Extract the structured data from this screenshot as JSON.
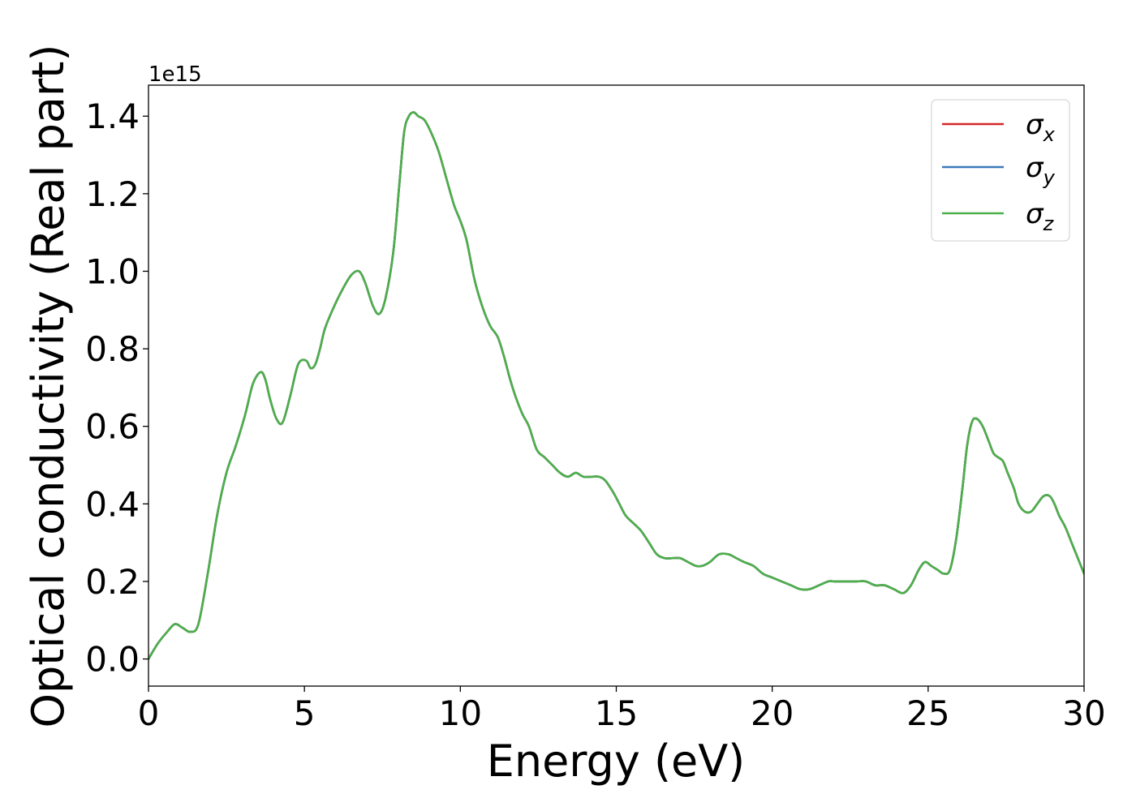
{
  "chart_data": {
    "type": "line",
    "title": "",
    "xlabel": "Energy (eV)",
    "ylabel": "Optical conductivity (Real part)",
    "y_offset_label": "1e15",
    "y_multiplier": 1000000000000000.0,
    "xlim": [
      0,
      30
    ],
    "ylim": [
      -0.07,
      1.48
    ],
    "xticks": [
      0,
      5,
      10,
      15,
      20,
      25,
      30
    ],
    "xtick_labels": [
      "0",
      "5",
      "10",
      "15",
      "20",
      "25",
      "30"
    ],
    "yticks": [
      0.0,
      0.2,
      0.4,
      0.6,
      0.8,
      1.0,
      1.2,
      1.4
    ],
    "ytick_labels": [
      "0.0",
      "0.2",
      "0.4",
      "0.6",
      "0.8",
      "1.0",
      "1.2",
      "1.4"
    ],
    "grid": false,
    "legend_position": "upper-right",
    "legend": [
      {
        "symbol": "σ",
        "subscript": "x",
        "color": "#d62728"
      },
      {
        "symbol": "σ",
        "subscript": "y",
        "color": "#3a7ab8"
      },
      {
        "symbol": "σ",
        "subscript": "z",
        "color": "#4daf4a"
      }
    ],
    "x": [
      0,
      0.3,
      0.6,
      0.85,
      1.1,
      1.35,
      1.6,
      1.9,
      2.2,
      2.5,
      2.8,
      3.1,
      3.35,
      3.6,
      3.75,
      3.9,
      4.1,
      4.3,
      4.55,
      4.8,
      5.05,
      5.2,
      5.35,
      5.5,
      5.65,
      5.9,
      6.2,
      6.5,
      6.75,
      6.95,
      7.2,
      7.4,
      7.6,
      7.85,
      8.05,
      8.2,
      8.35,
      8.5,
      8.65,
      8.85,
      9.05,
      9.3,
      9.55,
      9.8,
      10.0,
      10.2,
      10.45,
      10.7,
      10.95,
      11.2,
      11.4,
      11.6,
      11.8,
      12.0,
      12.2,
      12.45,
      12.7,
      12.95,
      13.2,
      13.45,
      13.7,
      13.95,
      14.2,
      14.45,
      14.65,
      14.9,
      15.1,
      15.3,
      15.55,
      15.8,
      16.05,
      16.3,
      16.55,
      16.8,
      17.05,
      17.3,
      17.55,
      17.75,
      18.0,
      18.3,
      18.6,
      18.85,
      19.1,
      19.4,
      19.7,
      20.0,
      20.3,
      20.6,
      20.9,
      21.2,
      21.5,
      21.8,
      22.0,
      22.2,
      22.45,
      22.7,
      23.0,
      23.3,
      23.6,
      23.9,
      24.2,
      24.45,
      24.7,
      24.9,
      25.1,
      25.3,
      25.5,
      25.7,
      25.9,
      26.1,
      26.25,
      26.4,
      26.55,
      26.75,
      26.95,
      27.1,
      27.25,
      27.4,
      27.55,
      27.75,
      27.9,
      28.1,
      28.3,
      28.5,
      28.7,
      28.9,
      29.05,
      29.2,
      29.4,
      29.6,
      29.8,
      30.0
    ],
    "series": [
      {
        "legend_index": 0,
        "values": [
          0.0,
          0.04,
          0.07,
          0.09,
          0.08,
          0.07,
          0.09,
          0.22,
          0.37,
          0.48,
          0.55,
          0.63,
          0.71,
          0.74,
          0.72,
          0.67,
          0.62,
          0.61,
          0.68,
          0.76,
          0.77,
          0.75,
          0.76,
          0.8,
          0.85,
          0.9,
          0.95,
          0.99,
          1.0,
          0.97,
          0.91,
          0.89,
          0.93,
          1.05,
          1.23,
          1.36,
          1.4,
          1.41,
          1.4,
          1.39,
          1.36,
          1.31,
          1.24,
          1.17,
          1.13,
          1.08,
          0.98,
          0.91,
          0.86,
          0.83,
          0.78,
          0.72,
          0.67,
          0.63,
          0.6,
          0.54,
          0.52,
          0.5,
          0.48,
          0.47,
          0.48,
          0.47,
          0.47,
          0.47,
          0.46,
          0.43,
          0.4,
          0.37,
          0.35,
          0.33,
          0.3,
          0.27,
          0.26,
          0.26,
          0.26,
          0.25,
          0.24,
          0.24,
          0.25,
          0.27,
          0.27,
          0.26,
          0.25,
          0.24,
          0.22,
          0.21,
          0.2,
          0.19,
          0.18,
          0.18,
          0.19,
          0.2,
          0.2,
          0.2,
          0.2,
          0.2,
          0.2,
          0.19,
          0.19,
          0.18,
          0.17,
          0.19,
          0.23,
          0.25,
          0.24,
          0.23,
          0.22,
          0.23,
          0.31,
          0.44,
          0.55,
          0.61,
          0.62,
          0.6,
          0.56,
          0.53,
          0.52,
          0.51,
          0.48,
          0.44,
          0.4,
          0.38,
          0.38,
          0.4,
          0.42,
          0.42,
          0.4,
          0.37,
          0.34,
          0.3,
          0.26,
          0.22
        ]
      },
      {
        "legend_index": 1,
        "values": [
          0.0,
          0.04,
          0.07,
          0.09,
          0.08,
          0.07,
          0.09,
          0.22,
          0.37,
          0.48,
          0.55,
          0.63,
          0.71,
          0.74,
          0.72,
          0.67,
          0.62,
          0.61,
          0.68,
          0.76,
          0.77,
          0.75,
          0.76,
          0.8,
          0.85,
          0.9,
          0.95,
          0.99,
          1.0,
          0.97,
          0.91,
          0.89,
          0.93,
          1.05,
          1.23,
          1.36,
          1.4,
          1.41,
          1.4,
          1.39,
          1.36,
          1.31,
          1.24,
          1.17,
          1.13,
          1.08,
          0.98,
          0.91,
          0.86,
          0.83,
          0.78,
          0.72,
          0.67,
          0.63,
          0.6,
          0.54,
          0.52,
          0.5,
          0.48,
          0.47,
          0.48,
          0.47,
          0.47,
          0.47,
          0.46,
          0.43,
          0.4,
          0.37,
          0.35,
          0.33,
          0.3,
          0.27,
          0.26,
          0.26,
          0.26,
          0.25,
          0.24,
          0.24,
          0.25,
          0.27,
          0.27,
          0.26,
          0.25,
          0.24,
          0.22,
          0.21,
          0.2,
          0.19,
          0.18,
          0.18,
          0.19,
          0.2,
          0.2,
          0.2,
          0.2,
          0.2,
          0.2,
          0.19,
          0.19,
          0.18,
          0.17,
          0.19,
          0.23,
          0.25,
          0.24,
          0.23,
          0.22,
          0.23,
          0.31,
          0.44,
          0.55,
          0.61,
          0.62,
          0.6,
          0.56,
          0.53,
          0.52,
          0.51,
          0.48,
          0.44,
          0.4,
          0.38,
          0.38,
          0.4,
          0.42,
          0.42,
          0.4,
          0.37,
          0.34,
          0.3,
          0.26,
          0.22
        ]
      },
      {
        "legend_index": 2,
        "values": [
          0.0,
          0.04,
          0.07,
          0.09,
          0.08,
          0.07,
          0.09,
          0.22,
          0.37,
          0.48,
          0.55,
          0.63,
          0.71,
          0.74,
          0.72,
          0.67,
          0.62,
          0.61,
          0.68,
          0.76,
          0.77,
          0.75,
          0.76,
          0.8,
          0.85,
          0.9,
          0.95,
          0.99,
          1.0,
          0.97,
          0.91,
          0.89,
          0.93,
          1.05,
          1.23,
          1.36,
          1.4,
          1.41,
          1.4,
          1.39,
          1.36,
          1.31,
          1.24,
          1.17,
          1.13,
          1.08,
          0.98,
          0.91,
          0.86,
          0.83,
          0.78,
          0.72,
          0.67,
          0.63,
          0.6,
          0.54,
          0.52,
          0.5,
          0.48,
          0.47,
          0.48,
          0.47,
          0.47,
          0.47,
          0.46,
          0.43,
          0.4,
          0.37,
          0.35,
          0.33,
          0.3,
          0.27,
          0.26,
          0.26,
          0.26,
          0.25,
          0.24,
          0.24,
          0.25,
          0.27,
          0.27,
          0.26,
          0.25,
          0.24,
          0.22,
          0.21,
          0.2,
          0.19,
          0.18,
          0.18,
          0.19,
          0.2,
          0.2,
          0.2,
          0.2,
          0.2,
          0.2,
          0.19,
          0.19,
          0.18,
          0.17,
          0.19,
          0.23,
          0.25,
          0.24,
          0.23,
          0.22,
          0.23,
          0.31,
          0.44,
          0.55,
          0.61,
          0.62,
          0.6,
          0.56,
          0.53,
          0.52,
          0.51,
          0.48,
          0.44,
          0.4,
          0.38,
          0.38,
          0.4,
          0.42,
          0.42,
          0.4,
          0.37,
          0.34,
          0.3,
          0.26,
          0.22
        ]
      }
    ]
  }
}
